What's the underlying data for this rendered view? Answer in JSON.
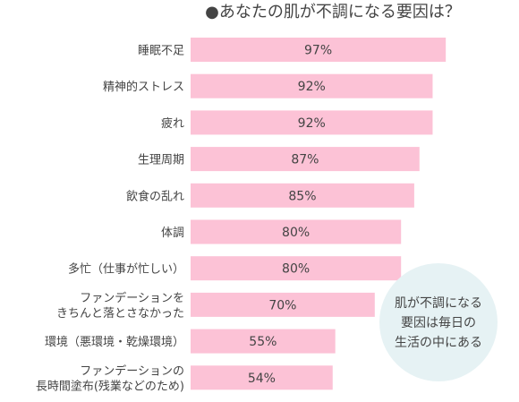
{
  "chart_data": {
    "type": "bar",
    "orientation": "horizontal",
    "title": "●あなたの肌が不調になる要因は？",
    "categories": [
      [
        "睡眠不足"
      ],
      [
        "精神的ストレス"
      ],
      [
        "疲れ"
      ],
      [
        "生理周期"
      ],
      [
        "飲食の乱れ"
      ],
      [
        "体調"
      ],
      [
        "多忙（仕事が忙しい）"
      ],
      [
        "ファンデーションを",
        "きちんと落とさなかった"
      ],
      [
        "環境（悪環境・乾燥環境）"
      ],
      [
        "ファンデーションの",
        "長時間塗布(残業などのため)"
      ]
    ],
    "values": [
      97,
      92,
      92,
      87,
      85,
      80,
      80,
      70,
      55,
      54
    ],
    "value_labels": [
      "97%",
      "92%",
      "92%",
      "87%",
      "85%",
      "80%",
      "80%",
      "70%",
      "55%",
      "54%"
    ],
    "unit": "%",
    "xlim": [
      0,
      100
    ],
    "annotation": [
      "肌が不調になる",
      "要因は毎日の",
      "生活の中にある"
    ],
    "colors": {
      "bar": "#fcc2d6",
      "bubble": "#e6f2f4",
      "text": "#444444"
    }
  }
}
